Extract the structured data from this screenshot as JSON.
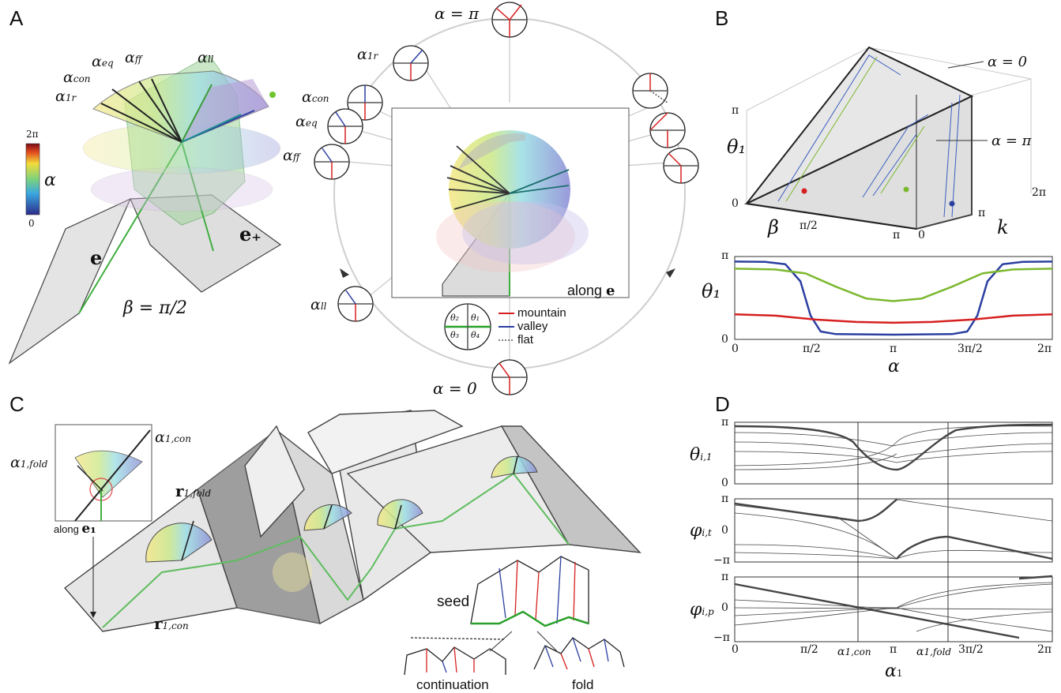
{
  "panels": {
    "a": "A",
    "b": "B",
    "c": "C",
    "d": "D"
  },
  "panel_a": {
    "labels": {
      "alpha_ff": "α",
      "alpha_eq": "α",
      "alpha_con": "α",
      "alpha_1r": "α",
      "alpha_ll": "α",
      "sub_ff": "ff",
      "sub_eq": "eq",
      "sub_con": "con",
      "sub_1r": "1r",
      "sub_ll": "ll",
      "e": "e",
      "e_plus": "e₊",
      "beta": "β = π/2"
    },
    "colorbar": {
      "top": "2π",
      "bottom": "0",
      "symbol": "α"
    },
    "circle_labels": {
      "alpha_pi": "α = π",
      "alpha_0": "α = 0",
      "along_e_prefix": "along ",
      "along_e_symbol": "e"
    },
    "legend": {
      "mountain": "mountain",
      "valley": "valley",
      "flat": "flat",
      "theta1": "θ₁",
      "theta2": "θ₂",
      "theta3": "θ₃",
      "theta4": "θ₄",
      "colors": {
        "mountain": "#d62020",
        "valley": "#2b3fa0",
        "flat": "#555555",
        "crease": "#2aa02a"
      }
    }
  },
  "panel_b": {
    "alpha0": "α = 0",
    "alphapi": "α = π",
    "axis3d": {
      "theta": "θ₁",
      "beta": "β",
      "k": "k",
      "pi_top": "π",
      "zero": "0",
      "beta_pi2": "π/2",
      "beta_pi": "π",
      "k0": "0",
      "kpi": "π",
      "k2pi": "2π"
    },
    "chart_data": {
      "type": "line",
      "xlabel": "α",
      "ylabel": "θ₁",
      "x_ticks": [
        "0",
        "π/2",
        "π",
        "3π/2",
        "2π"
      ],
      "y_ticks": [
        "0",
        "π"
      ],
      "xlim": [
        0,
        6.283
      ],
      "ylim": [
        0,
        3.1416
      ],
      "series": [
        {
          "color": "#2b3fa0",
          "values": [
            [
              0,
              2.95
            ],
            [
              0.6,
              2.94
            ],
            [
              1.0,
              2.85
            ],
            [
              1.3,
              2.2
            ],
            [
              1.5,
              0.9
            ],
            [
              1.7,
              0.3
            ],
            [
              2.0,
              0.2
            ],
            [
              3.14,
              0.18
            ],
            [
              4.3,
              0.2
            ],
            [
              4.6,
              0.3
            ],
            [
              4.8,
              0.9
            ],
            [
              5.0,
              2.2
            ],
            [
              5.3,
              2.85
            ],
            [
              5.7,
              2.94
            ],
            [
              6.283,
              2.95
            ]
          ]
        },
        {
          "color": "#7cb82f",
          "values": [
            [
              0,
              2.68
            ],
            [
              0.8,
              2.65
            ],
            [
              1.4,
              2.5
            ],
            [
              2.0,
              2.0
            ],
            [
              2.6,
              1.55
            ],
            [
              3.14,
              1.45
            ],
            [
              3.7,
              1.55
            ],
            [
              4.3,
              2.0
            ],
            [
              4.9,
              2.5
            ],
            [
              5.5,
              2.65
            ],
            [
              6.283,
              2.68
            ]
          ]
        },
        {
          "color": "#d62020",
          "values": [
            [
              0,
              0.95
            ],
            [
              0.8,
              0.9
            ],
            [
              1.6,
              0.75
            ],
            [
              2.4,
              0.66
            ],
            [
              3.14,
              0.63
            ],
            [
              3.9,
              0.66
            ],
            [
              4.7,
              0.75
            ],
            [
              5.5,
              0.9
            ],
            [
              6.283,
              0.95
            ]
          ]
        }
      ]
    }
  },
  "panel_c": {
    "alpha_1fold": "α",
    "sub_1fold": "1,fold",
    "alpha_1con": "α",
    "sub_1con": "1,con",
    "r_fold": "r",
    "r_fold_sub": "1,fold",
    "r_con": "r",
    "r_con_sub": "1,con",
    "along_e1": "along ",
    "e1_symbol": "e₁",
    "seed": "seed",
    "continuation": "continuation",
    "fold": "fold"
  },
  "panel_d": {
    "chart_data": [
      {
        "type": "line",
        "ylabel": "θ_{i,1}",
        "y_ticks": [
          "π",
          "0"
        ]
      },
      {
        "type": "line",
        "ylabel": "φ_{i,t}",
        "y_ticks": [
          "π",
          "0",
          "−π"
        ]
      },
      {
        "type": "line",
        "ylabel": "φ_{i,p}",
        "y_ticks": [
          "π",
          "0",
          "−π"
        ]
      }
    ],
    "ylabels": {
      "theta": "θ",
      "theta_sub": "i,1",
      "phit": "φ",
      "phit_sub": "i,t",
      "phip": "φ",
      "phip_sub": "i,p"
    },
    "x_ticks": {
      "zero": "0",
      "pi2": "π/2",
      "alpha1con": "α",
      "alpha1con_sub": "1,con",
      "pi": "π",
      "alpha1fold": "α",
      "alpha1fold_sub": "1,fold",
      "threepi2": "3π/2",
      "twopi": "2π"
    },
    "xlabel": "α",
    "xlabel_sub": "1",
    "yt": {
      "pi": "π",
      "zero": "0",
      "mpi": "−π"
    }
  }
}
